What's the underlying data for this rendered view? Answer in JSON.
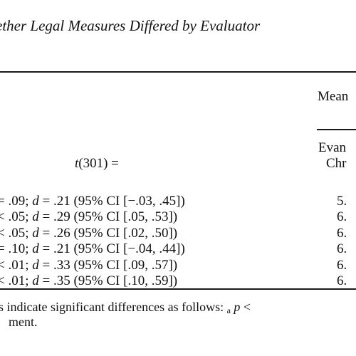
{
  "table": {
    "caption": "ether Legal Measures Differed by Evaluator",
    "header": {
      "means_label": "Mean",
      "group_line1": "Evan",
      "group_line2": "Chr",
      "t_stat": "t",
      "t_df": "(301) ="
    },
    "rows": [
      {
        "p_part": "= .09; ",
        "d_part": " = .21 (95% CI [−.03, .45])",
        "mean": "5."
      },
      {
        "p_part": "< .05; ",
        "d_part": " = .29 (95% CI [.05, .53])",
        "mean": "6."
      },
      {
        "p_part": "< .05; ",
        "d_part": " = .26 (95% CI [.02, .50])",
        "mean": "6."
      },
      {
        "p_part": "= .10; ",
        "d_part": " = .21 (95% CI [−.04, .44])",
        "mean": "6."
      },
      {
        "p_part": "< .01; ",
        "d_part": " = .33 (95% CI [.09, .57])",
        "mean": "6."
      },
      {
        "p_part": "< .01; ",
        "d_part": " = .35 (95% CI [.10, .59])",
        "mean": "6."
      }
    ],
    "d_symbol": "d",
    "note": {
      "line1_start": "s indicate significant differences as follows: ",
      "subscript": "a",
      "line1_p": "p",
      "line1_end": " <",
      "line2": "ment."
    }
  }
}
